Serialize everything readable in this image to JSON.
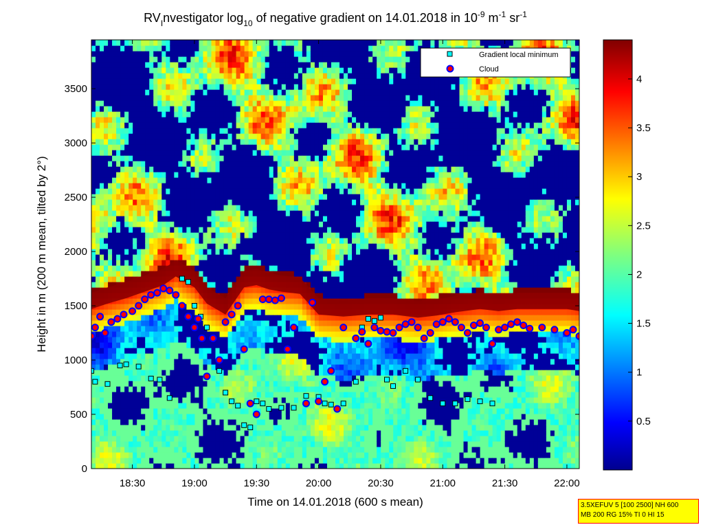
{
  "chart_data": {
    "type": "heatmap",
    "title": {
      "prefix": "RV",
      "sub1": "I",
      "mid": "nvestigator log",
      "sub2": "10",
      "mid2": " of negative gradient on 14.01.2018 in 10",
      "sup1": "-9",
      "mid3": " m",
      "sup2": "-1",
      "mid4": " sr",
      "sup3": "-1"
    },
    "xlabel": "Time on 14.01.2018 (600 s mean)",
    "ylabel": "Height in m (200 m mean, tilted by 2°)",
    "x_ticks": [
      "18:30",
      "19:00",
      "19:30",
      "20:00",
      "20:30",
      "21:00",
      "21:30",
      "22:00"
    ],
    "x_tick_hours": [
      18.5,
      19.0,
      19.5,
      20.0,
      20.5,
      21.0,
      21.5,
      22.0
    ],
    "xlim": [
      18.17,
      22.1
    ],
    "y_ticks": [
      "0",
      "500",
      "1000",
      "1500",
      "2000",
      "2500",
      "3000",
      "3500"
    ],
    "y_tick_values": [
      0,
      500,
      1000,
      1500,
      2000,
      2500,
      3000,
      3500
    ],
    "ylim": [
      0,
      3950
    ],
    "colorbar": {
      "ticks": [
        "0.5",
        "1",
        "1.5",
        "2",
        "2.5",
        "3",
        "3.5",
        "4"
      ],
      "tick_values": [
        0.5,
        1,
        1.5,
        2,
        2.5,
        3,
        3.5,
        4
      ],
      "range": [
        0,
        4.4
      ]
    },
    "legend": {
      "placement": "top-right",
      "entries": [
        {
          "label": "Gradient local minimum",
          "marker": "square",
          "color": "#00ffff"
        },
        {
          "label": "Cloud",
          "marker": "circle",
          "color": "#ff0000"
        }
      ]
    },
    "cloud_layer": {
      "hours": [
        18.17,
        18.3,
        18.45,
        18.6,
        18.75,
        18.85,
        19.0,
        19.1,
        19.25,
        19.4,
        19.5,
        19.6,
        19.7,
        19.85,
        20.0,
        20.2,
        20.4,
        20.6,
        20.8,
        20.95,
        21.1,
        21.3,
        21.45,
        21.6,
        21.8,
        22.0,
        22.1
      ],
      "heights": [
        1500,
        1550,
        1600,
        1660,
        1720,
        1800,
        1700,
        1550,
        1450,
        1700,
        1720,
        1680,
        1660,
        1640,
        1450,
        1430,
        1450,
        1450,
        1420,
        1440,
        1470,
        1500,
        1480,
        1500,
        1500,
        1500,
        1480
      ]
    },
    "clouds": {
      "hours": [
        18.17,
        18.2,
        18.24,
        18.28,
        18.33,
        18.38,
        18.43,
        18.5,
        18.55,
        18.6,
        18.65,
        18.7,
        18.75,
        18.8,
        18.85,
        18.9,
        18.95,
        19.0,
        19.03,
        19.06,
        19.1,
        19.15,
        19.2,
        19.25,
        19.3,
        19.35,
        19.4,
        19.45,
        19.5,
        19.55,
        19.6,
        19.65,
        19.7,
        19.75,
        19.8,
        19.9,
        19.95,
        20.0,
        20.05,
        20.1,
        20.15,
        20.2,
        20.3,
        20.35,
        20.4,
        20.45,
        20.5,
        20.55,
        20.6,
        20.65,
        20.7,
        20.75,
        20.8,
        20.85,
        20.9,
        20.95,
        21.0,
        21.05,
        21.1,
        21.15,
        21.2,
        21.25,
        21.3,
        21.35,
        21.4,
        21.45,
        21.5,
        21.55,
        21.6,
        21.65,
        21.7,
        21.8,
        21.9,
        22.0,
        22.05,
        22.1
      ],
      "heights": [
        1220,
        1300,
        1400,
        1250,
        1350,
        1380,
        1420,
        1450,
        1500,
        1560,
        1600,
        1620,
        1660,
        1640,
        1600,
        1500,
        1400,
        1300,
        1380,
        1200,
        850,
        1200,
        1000,
        1350,
        1420,
        1500,
        1100,
        600,
        500,
        1560,
        1560,
        1550,
        1570,
        1100,
        1300,
        600,
        1530,
        620,
        800,
        900,
        550,
        1300,
        1200,
        1260,
        1150,
        1300,
        1270,
        1260,
        1250,
        1300,
        1330,
        1350,
        1300,
        1200,
        1250,
        1330,
        1350,
        1380,
        1350,
        1300,
        1250,
        1320,
        1340,
        1300,
        1150,
        1280,
        1300,
        1330,
        1350,
        1320,
        1290,
        1300,
        1280,
        1250,
        1280,
        1220
      ]
    },
    "gradient_minima": {
      "hours": [
        18.17,
        18.2,
        18.3,
        18.4,
        18.45,
        18.55,
        18.65,
        18.72,
        18.8,
        18.9,
        18.95,
        19.0,
        19.05,
        19.1,
        19.15,
        19.2,
        19.25,
        19.3,
        19.35,
        19.4,
        19.45,
        19.5,
        19.55,
        19.6,
        19.7,
        19.8,
        19.9,
        20.0,
        20.05,
        20.1,
        20.2,
        20.3,
        20.35,
        20.4,
        20.45,
        20.5,
        20.55,
        20.6,
        20.7,
        20.8,
        20.9,
        21.0,
        21.1,
        21.2,
        21.3,
        21.4
      ],
      "heights": [
        900,
        800,
        780,
        950,
        960,
        940,
        830,
        820,
        650,
        1750,
        1720,
        1500,
        1400,
        1300,
        1200,
        900,
        700,
        620,
        580,
        400,
        380,
        620,
        600,
        550,
        560,
        560,
        670,
        660,
        600,
        590,
        600,
        800,
        1300,
        1380,
        1360,
        1390,
        820,
        760,
        900,
        820,
        650,
        600,
        600,
        640,
        620,
        600
      ]
    }
  },
  "param_box": {
    "line1": "3.5XEFUV 5 [100 2500] NH 600",
    "line2": "MB 200 RG 15% TI 0 HI 15"
  }
}
